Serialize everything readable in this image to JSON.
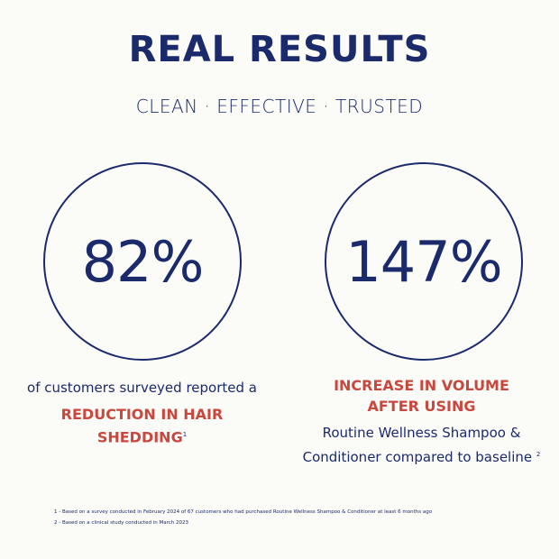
{
  "title": "REAL RESULTS",
  "subtitle": "CLEAN · EFFECTIVE · TRUSTED",
  "colors": {
    "navy": "#1b2a6b",
    "red": "#c9473c",
    "background": "#fbfbf8"
  },
  "stats": [
    {
      "value": "82%",
      "lead": "of customers surveyed reported a",
      "highlight_1": "REDUCTION IN HAIR",
      "highlight_2": "SHEDDING",
      "footnote_ref": "1"
    },
    {
      "value": "147%",
      "highlight_1": "INCREASE IN VOLUME",
      "highlight_2": "AFTER USING",
      "body_1": "Routine Wellness Shampoo &",
      "body_2": "Conditioner compared to baseline",
      "footnote_ref": "2"
    }
  ],
  "footnotes": [
    "1 -  Based on a survey conducted in February 2024 of 67 customers who had purchased Routine Wellness Shampoo & Conditioner at least 6 months ago",
    "2 - Based on a clinical study conducted in March 2023"
  ]
}
